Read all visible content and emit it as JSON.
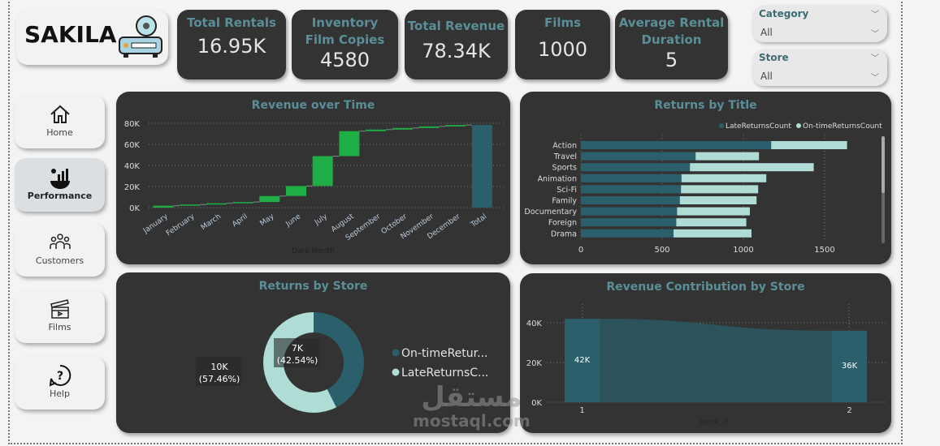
{
  "logo": {
    "text": "SAKILA",
    "icon": "projector-icon"
  },
  "kpis": [
    {
      "title": "Total Rentals",
      "value": "16.95K"
    },
    {
      "title": "Inventory Film Copies",
      "value": "4580"
    },
    {
      "title": "Total Revenue",
      "value": "78.34K"
    },
    {
      "title": "Films",
      "value": "1000"
    },
    {
      "title": "Average Rental Duration",
      "value": "5"
    }
  ],
  "slicers": [
    {
      "label": "Category",
      "value": "All"
    },
    {
      "label": "Store",
      "value": "All"
    }
  ],
  "nav": [
    {
      "label": "Home",
      "icon": "home-icon"
    },
    {
      "label": "Performance",
      "icon": "performance-icon",
      "active": true
    },
    {
      "label": "Customers",
      "icon": "users-icon"
    },
    {
      "label": "Films",
      "icon": "clapperboard-icon"
    },
    {
      "label": "Help",
      "icon": "help-icon"
    }
  ],
  "colors": {
    "accent": "#5a8e98",
    "dark_teal": "#2b5f6b",
    "light_teal": "#b0dcd6",
    "green": "#1fae45",
    "panel": "#333333"
  },
  "watermark": "مستقل mostaql.com",
  "chart_data": [
    {
      "type": "waterfall",
      "title": "Revenue over Time",
      "xlabel": "Date Month",
      "yticks": [
        "0K",
        "20K",
        "40K",
        "60K",
        "80K"
      ],
      "ylim": [
        0,
        80000
      ],
      "categories": [
        "January",
        "February",
        "March",
        "April",
        "May",
        "June",
        "July",
        "August",
        "September",
        "October",
        "November",
        "December",
        "Total"
      ],
      "values": [
        1800,
        1100,
        1200,
        1200,
        5700,
        9500,
        28300,
        23700,
        1500,
        1500,
        1500,
        1340,
        78340
      ]
    },
    {
      "type": "bar",
      "stacked": true,
      "orientation": "horizontal",
      "title": "Returns by Title",
      "xlim": [
        0,
        1800
      ],
      "xticks": [
        "0",
        "500",
        "1000",
        "1500"
      ],
      "legend": "top-right",
      "categories": [
        "Action",
        "Travel",
        "Sports",
        "Animation",
        "Sci-Fi",
        "Family",
        "Documentary",
        "Foreign",
        "Drama"
      ],
      "series": [
        {
          "name": "LateReturnsCount",
          "values": [
            1171,
            706,
            671,
            619,
            616,
            609,
            592,
            587,
            570
          ]
        },
        {
          "name": "On-timeReturnsCount",
          "values": [
            467,
            390,
            762,
            522,
            475,
            472,
            448,
            431,
            480
          ]
        }
      ]
    },
    {
      "type": "pie",
      "donut": true,
      "title": "Returns by Store",
      "legend": "right",
      "slices": [
        {
          "name": "On-timeRetur...",
          "value": 7000,
          "label": "7K",
          "pct": "(42.54%)",
          "percent": 42.54
        },
        {
          "name": "LateReturnsC...",
          "value": 10000,
          "label": "10K",
          "pct": "(57.46%)",
          "percent": 57.46
        }
      ]
    },
    {
      "type": "ribbon",
      "title": "Revenue Contribution by Store",
      "xlabel": "store_id",
      "yticks": [
        "0K",
        "20K",
        "40K"
      ],
      "ylim": [
        0,
        40000
      ],
      "categories": [
        "1",
        "2"
      ],
      "values": [
        42000,
        36000
      ],
      "labels": [
        "42K",
        "36K"
      ]
    }
  ]
}
